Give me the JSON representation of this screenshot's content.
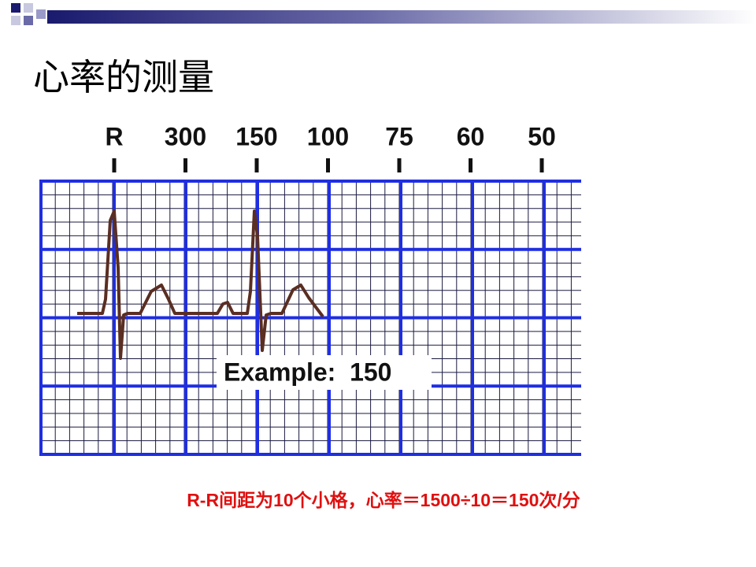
{
  "header": {
    "title": "心率的测量"
  },
  "ruler": {
    "labels": [
      "R",
      "300",
      "150",
      "100",
      "75",
      "60",
      "50"
    ]
  },
  "figure": {
    "example": "Example:  150"
  },
  "caption": "R-R间距为10个小格，心率＝1500÷10＝150次/分"
}
